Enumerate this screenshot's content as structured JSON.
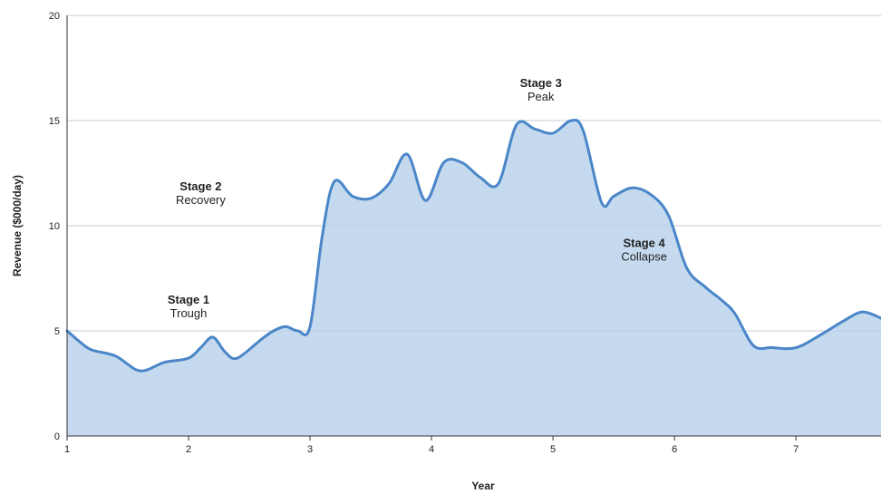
{
  "chart_data": {
    "type": "area",
    "title": "",
    "xlabel": "Year",
    "ylabel": "Revenue ($000/day)",
    "xlim": [
      1,
      7.7
    ],
    "ylim": [
      0,
      20
    ],
    "x_ticks": [
      "1",
      "2",
      "3",
      "4",
      "5",
      "6",
      "7"
    ],
    "y_ticks": [
      "0",
      "5",
      "10",
      "15",
      "20"
    ],
    "grid": true,
    "legend": "none",
    "colors": {
      "line": "#4a86c8",
      "fill": "#c5daef",
      "grid": "#d9d9d9",
      "axis": "#333333"
    },
    "series": [
      {
        "x": [
          1.0,
          1.1,
          1.2,
          1.4,
          1.6,
          1.8,
          2.0,
          2.1,
          2.2,
          2.3,
          2.4,
          2.6,
          2.7,
          2.8,
          2.9,
          3.0,
          3.1,
          3.2,
          3.35,
          3.5,
          3.65,
          3.8,
          3.95,
          4.1,
          4.25,
          4.4,
          4.55,
          4.7,
          4.85,
          5.0,
          5.15,
          5.25,
          5.4,
          5.5,
          5.65,
          5.8,
          5.95,
          6.1,
          6.25,
          6.4,
          6.5,
          6.65,
          6.8,
          7.0,
          7.2,
          7.4,
          7.55,
          7.7
        ],
        "values": [
          5.0,
          4.5,
          4.1,
          3.8,
          3.1,
          3.5,
          3.7,
          4.2,
          4.7,
          4.0,
          3.7,
          4.6,
          5.0,
          5.2,
          5.0,
          5.2,
          9.5,
          12.1,
          11.4,
          11.3,
          12.0,
          13.4,
          11.2,
          13.0,
          13.0,
          12.3,
          12.0,
          14.8,
          14.6,
          14.4,
          15.0,
          14.5,
          11.1,
          11.4,
          11.8,
          11.5,
          10.5,
          8.0,
          7.1,
          6.4,
          5.8,
          4.3,
          4.2,
          4.2,
          4.8,
          5.5,
          5.9,
          5.6
        ]
      }
    ],
    "annotations": [
      {
        "x": 2.0,
        "y": 5.6,
        "title": "Stage 1",
        "label": "Trough"
      },
      {
        "x": 2.1,
        "y": 11.0,
        "title": "Stage 2",
        "label": "Recovery"
      },
      {
        "x": 4.9,
        "y": 15.9,
        "title": "Stage 3",
        "label": "Peak"
      },
      {
        "x": 5.75,
        "y": 8.3,
        "title": "Stage 4",
        "label": "Collapse"
      }
    ]
  }
}
